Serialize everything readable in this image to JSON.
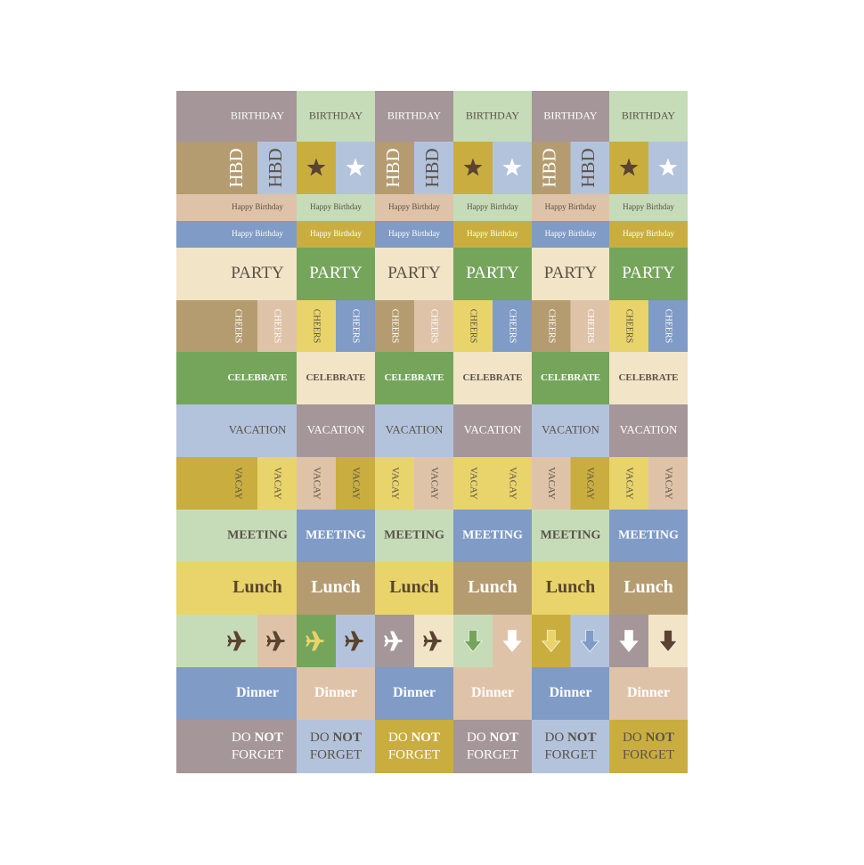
{
  "rows": [
    [
      "BIRTHDAY",
      "BIRTHDAY",
      "BIRTHDAY",
      "BIRTHDAY",
      "BIRTHDAY",
      "BIRTHDAY"
    ],
    [
      "HBD",
      "HBD",
      "HBD",
      "HBD",
      "HBD",
      "HBD"
    ],
    [
      "Happy Birthday",
      "Happy Birthday",
      "Happy Birthday",
      "Happy Birthday",
      "Happy Birthday",
      "Happy Birthday"
    ],
    [
      "Happy Birthday",
      "Happy Birthday",
      "Happy Birthday",
      "Happy Birthday",
      "Happy Birthday",
      "Happy Birthday"
    ],
    [
      "PARTY",
      "PARTY",
      "PARTY",
      "PARTY",
      "PARTY",
      "PARTY"
    ],
    [
      "CHEERS",
      "CHEERS",
      "CHEERS",
      "CHEERS",
      "CHEERS",
      "CHEERS",
      "CHEERS",
      "CHEERS",
      "CHEERS",
      "CHEERS",
      "CHEERS",
      "CHEERS"
    ],
    [
      "CELEBRATE",
      "CELEBRATE",
      "CELEBRATE",
      "CELEBRATE",
      "CELEBRATE",
      "CELEBRATE"
    ],
    [
      "VACATION",
      "VACATION",
      "VACATION",
      "VACATION",
      "VACATION",
      "VACATION"
    ],
    [
      "VACAY",
      "VACAY",
      "VACAY",
      "VACAY",
      "VACAY",
      "VACAY",
      "VACAY",
      "VACAY",
      "VACAY",
      "VACAY",
      "VACAY",
      "VACAY"
    ],
    [
      "MEETING",
      "MEETING",
      "MEETING",
      "MEETING",
      "MEETING",
      "MEETING"
    ],
    [
      "Lunch",
      "Lunch",
      "Lunch",
      "Lunch",
      "Lunch",
      "Lunch"
    ],
    [
      "Dinner",
      "Dinner",
      "Dinner",
      "Dinner",
      "Dinner",
      "Dinner"
    ],
    [
      [
        "DO",
        "NOT",
        "FORGET"
      ],
      [
        "DO",
        "NOT",
        "FORGET"
      ],
      [
        "DO",
        "NOT",
        "FORGET"
      ],
      [
        "DO",
        "NOT",
        "FORGET"
      ],
      [
        "DO",
        "NOT",
        "FORGET"
      ],
      [
        "DO",
        "NOT",
        "FORGET"
      ]
    ]
  ]
}
